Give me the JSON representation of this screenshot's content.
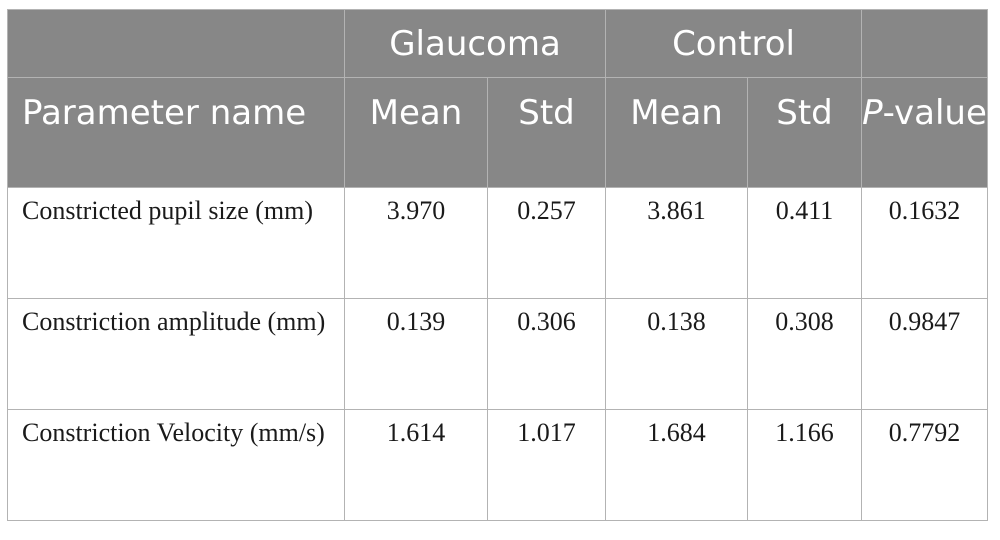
{
  "table": {
    "group_headers": {
      "empty_left": "",
      "glaucoma": "Glaucoma",
      "control": "Control",
      "empty_right": ""
    },
    "column_headers": {
      "parameter": "Parameter name",
      "glaucoma_mean": "Mean",
      "glaucoma_std": "Std",
      "control_mean": "Mean",
      "control_std": "Std",
      "p_italic": "P",
      "p_rest": "-value"
    },
    "rows": [
      {
        "parameter": "Constricted pupil size (mm)",
        "glaucoma_mean": "3.970",
        "glaucoma_std": "0.257",
        "control_mean": "3.861",
        "control_std": "0.411",
        "p_value": "0.1632"
      },
      {
        "parameter": "Constriction amplitude (mm)",
        "glaucoma_mean": "0.139",
        "glaucoma_std": "0.306",
        "control_mean": "0.138",
        "control_std": "0.308",
        "p_value": "0.9847"
      },
      {
        "parameter": "Constriction Velocity (mm/s)",
        "glaucoma_mean": "1.614",
        "glaucoma_std": "1.017",
        "control_mean": "1.684",
        "control_std": "1.166",
        "p_value": "0.7792"
      }
    ]
  },
  "colors": {
    "header_background": "#878787",
    "header_text": "#ffffff",
    "border": "#b3b3b3",
    "body_text": "#1a1a1a"
  }
}
